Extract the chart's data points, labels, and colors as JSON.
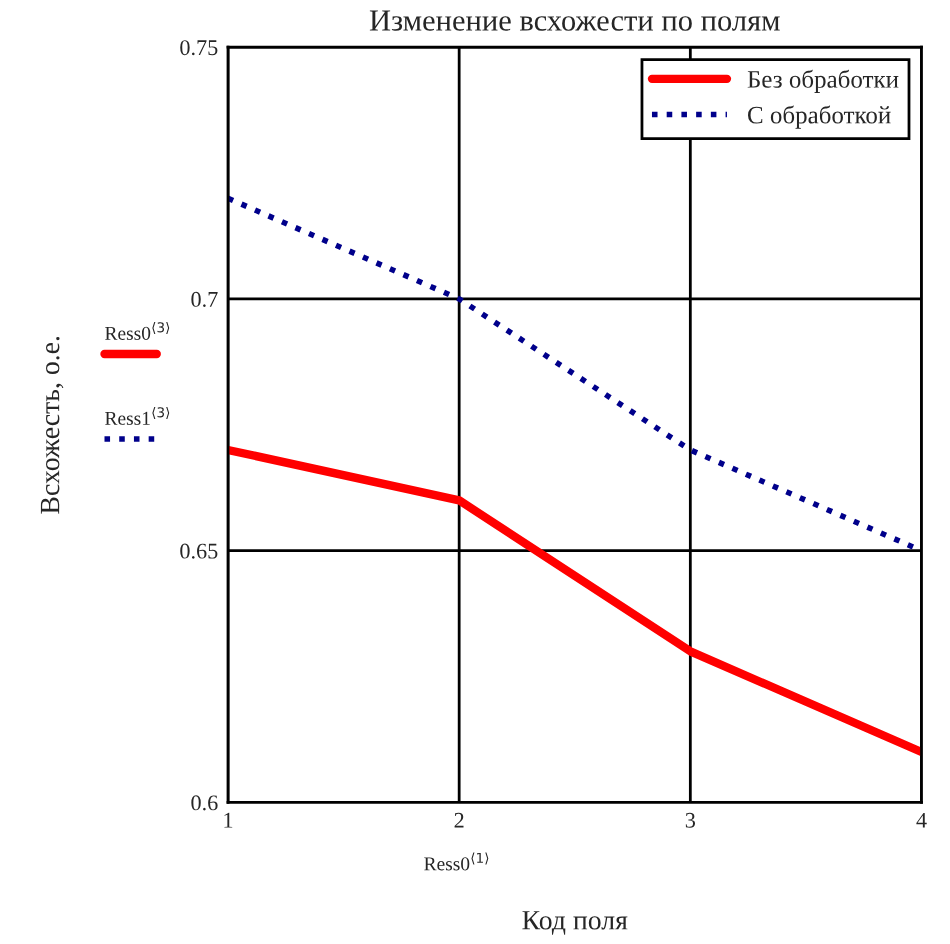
{
  "chart_data": {
    "type": "line",
    "title": "Изменение всхожести по полям",
    "xlabel": "Код поля",
    "ylabel": "Всхожесть, о.е.",
    "x": [
      1,
      2,
      3,
      4
    ],
    "series": [
      {
        "name": "Без обработки",
        "color": "#ff0000",
        "values": [
          0.67,
          0.66,
          0.63,
          0.61
        ],
        "line_style": "solid"
      },
      {
        "name": "С обработкой",
        "color": "#00008b",
        "values": [
          0.72,
          0.7,
          0.67,
          0.65
        ],
        "line_style": "dotted"
      }
    ],
    "xlim": [
      1,
      4
    ],
    "xticks": [
      1,
      2,
      3,
      4
    ],
    "ylim": [
      0.6,
      0.75
    ],
    "yticks": [
      0.6,
      0.65,
      0.7,
      0.75
    ],
    "grid": true,
    "legend": "top right",
    "annotations": [
      "Ress0$^{⟨3⟩}$",
      "Ress1$^{⟨3⟩}$",
      "Ress0$^{⟨1⟩}$"
    ]
  }
}
